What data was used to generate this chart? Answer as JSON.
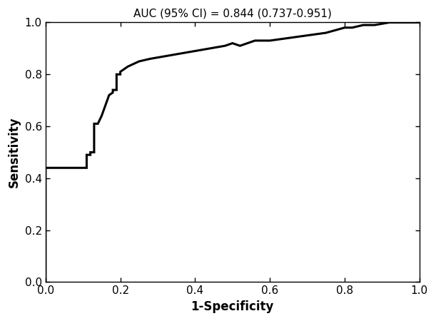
{
  "title": "AUC (95% CI) = 0.844 (0.737-0.951)",
  "xlabel": "1-Specificity",
  "ylabel": "Sensitivity",
  "xlim": [
    0.0,
    1.0
  ],
  "ylim": [
    0.0,
    1.0
  ],
  "xticks": [
    0.0,
    0.2,
    0.4,
    0.6,
    0.8,
    1.0
  ],
  "yticks": [
    0.0,
    0.2,
    0.4,
    0.6,
    0.8,
    1.0
  ],
  "line_color": "#000000",
  "line_width": 2.2,
  "background_color": "#ffffff",
  "roc_x": [
    0.0,
    0.0,
    0.02,
    0.04,
    0.06,
    0.08,
    0.1,
    0.11,
    0.11,
    0.12,
    0.12,
    0.13,
    0.13,
    0.14,
    0.15,
    0.16,
    0.17,
    0.18,
    0.18,
    0.19,
    0.19,
    0.2,
    0.2,
    0.22,
    0.25,
    0.28,
    0.32,
    0.36,
    0.4,
    0.44,
    0.48,
    0.5,
    0.52,
    0.54,
    0.56,
    0.6,
    0.65,
    0.7,
    0.75,
    0.8,
    0.82,
    0.85,
    0.88,
    0.92,
    0.96,
    1.0
  ],
  "roc_y": [
    0.0,
    0.44,
    0.44,
    0.44,
    0.44,
    0.44,
    0.44,
    0.44,
    0.49,
    0.49,
    0.5,
    0.5,
    0.61,
    0.61,
    0.64,
    0.68,
    0.72,
    0.73,
    0.74,
    0.74,
    0.8,
    0.8,
    0.81,
    0.83,
    0.85,
    0.86,
    0.87,
    0.88,
    0.89,
    0.9,
    0.91,
    0.92,
    0.91,
    0.92,
    0.93,
    0.93,
    0.94,
    0.95,
    0.96,
    0.98,
    0.98,
    0.99,
    0.99,
    1.0,
    1.0,
    1.0
  ],
  "title_fontsize": 11,
  "label_fontsize": 12,
  "tick_fontsize": 11
}
